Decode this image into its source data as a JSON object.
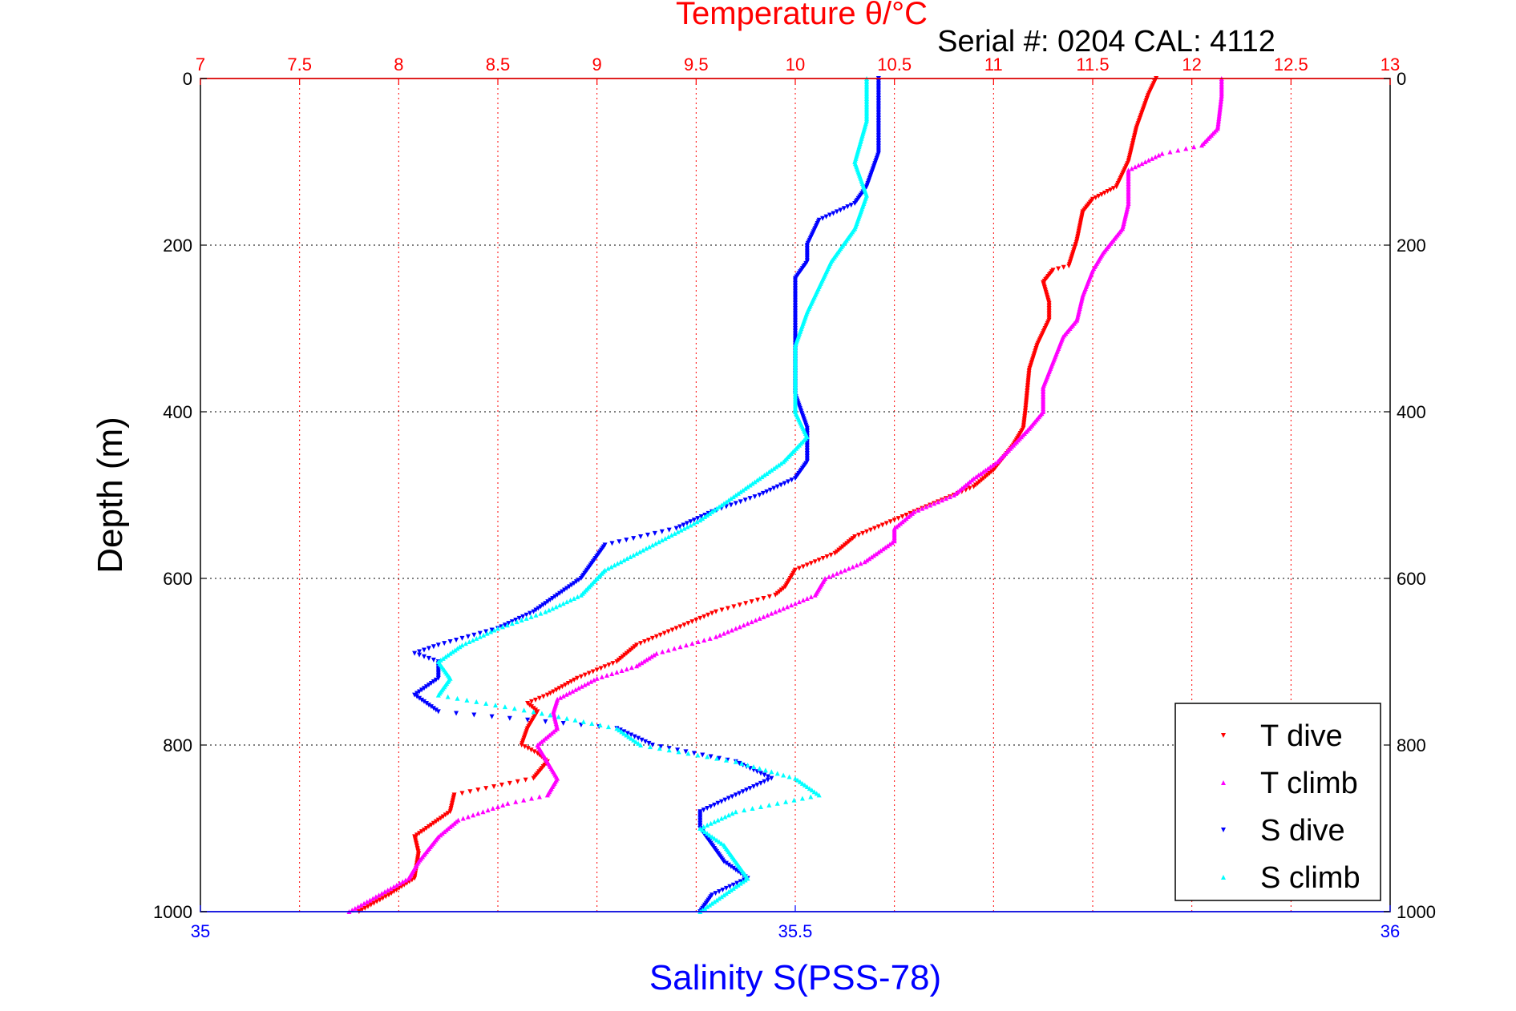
{
  "chart_data": {
    "type": "scatter",
    "title": "Temperature θ/°C",
    "annotation": "Serial #: 0204  CAL: 4112",
    "xlabel": "Salinity S(PSS-78)",
    "ylabel": "Depth (m)",
    "top_axis": {
      "range": [
        7,
        13
      ],
      "ticks": [
        "7",
        "7.5",
        "8",
        "8.5",
        "9",
        "9.5",
        "10",
        "10.5",
        "11",
        "11.5",
        "12",
        "12.5",
        "13"
      ],
      "color": "#ff0000"
    },
    "bottom_axis": {
      "range": [
        35,
        36
      ],
      "ticks": [
        "35",
        "35.5",
        "36"
      ],
      "color": "#0000ff"
    },
    "y_axis": {
      "range": [
        0,
        1000
      ],
      "reversed": true,
      "ticks": [
        "0",
        "200",
        "400",
        "600",
        "800",
        "1000"
      ]
    },
    "grid": true,
    "legend_position": "bottom-right",
    "series": [
      {
        "name": "T dive",
        "axis": "temperature",
        "color": "#ff0000",
        "marker": "triangle-down",
        "points": [
          [
            11.82,
            0
          ],
          [
            11.78,
            20
          ],
          [
            11.72,
            60
          ],
          [
            11.68,
            100
          ],
          [
            11.62,
            130
          ],
          [
            11.5,
            145
          ],
          [
            11.45,
            160
          ],
          [
            11.42,
            195
          ],
          [
            11.38,
            225
          ],
          [
            11.3,
            230
          ],
          [
            11.25,
            245
          ],
          [
            11.28,
            270
          ],
          [
            11.28,
            290
          ],
          [
            11.22,
            320
          ],
          [
            11.18,
            350
          ],
          [
            11.16,
            400
          ],
          [
            11.15,
            420
          ],
          [
            11.1,
            440
          ],
          [
            11.0,
            470
          ],
          [
            10.9,
            490
          ],
          [
            10.7,
            510
          ],
          [
            10.5,
            530
          ],
          [
            10.3,
            550
          ],
          [
            10.2,
            570
          ],
          [
            10.0,
            590
          ],
          [
            9.95,
            610
          ],
          [
            9.9,
            620
          ],
          [
            9.6,
            640
          ],
          [
            9.4,
            660
          ],
          [
            9.2,
            680
          ],
          [
            9.1,
            700
          ],
          [
            8.9,
            720
          ],
          [
            8.75,
            740
          ],
          [
            8.65,
            750
          ],
          [
            8.7,
            760
          ],
          [
            8.65,
            780
          ],
          [
            8.62,
            800
          ],
          [
            8.7,
            810
          ],
          [
            8.75,
            820
          ],
          [
            8.68,
            840
          ],
          [
            8.28,
            860
          ],
          [
            8.26,
            880
          ],
          [
            8.08,
            910
          ],
          [
            8.1,
            930
          ],
          [
            8.08,
            960
          ],
          [
            7.95,
            980
          ],
          [
            7.8,
            1000
          ]
        ]
      },
      {
        "name": "T climb",
        "axis": "temperature",
        "color": "#ff00ff",
        "marker": "triangle-up",
        "points": [
          [
            12.15,
            0
          ],
          [
            12.15,
            20
          ],
          [
            12.13,
            60
          ],
          [
            12.05,
            80
          ],
          [
            11.85,
            90
          ],
          [
            11.68,
            110
          ],
          [
            11.68,
            150
          ],
          [
            11.65,
            180
          ],
          [
            11.55,
            210
          ],
          [
            11.5,
            230
          ],
          [
            11.45,
            260
          ],
          [
            11.42,
            290
          ],
          [
            11.35,
            310
          ],
          [
            11.3,
            340
          ],
          [
            11.25,
            370
          ],
          [
            11.25,
            400
          ],
          [
            11.18,
            420
          ],
          [
            11.1,
            440
          ],
          [
            11.02,
            460
          ],
          [
            10.9,
            480
          ],
          [
            10.8,
            500
          ],
          [
            10.6,
            520
          ],
          [
            10.5,
            540
          ],
          [
            10.5,
            555
          ],
          [
            10.35,
            580
          ],
          [
            10.15,
            600
          ],
          [
            10.1,
            620
          ],
          [
            9.9,
            640
          ],
          [
            9.8,
            650
          ],
          [
            9.6,
            670
          ],
          [
            9.3,
            690
          ],
          [
            9.2,
            705
          ],
          [
            9.0,
            720
          ],
          [
            8.8,
            745
          ],
          [
            8.78,
            760
          ],
          [
            8.8,
            780
          ],
          [
            8.7,
            800
          ],
          [
            8.75,
            820
          ],
          [
            8.8,
            840
          ],
          [
            8.75,
            860
          ],
          [
            8.55,
            870
          ],
          [
            8.3,
            890
          ],
          [
            8.2,
            910
          ],
          [
            8.1,
            940
          ],
          [
            8.05,
            960
          ],
          [
            7.9,
            980
          ],
          [
            7.75,
            1000
          ]
        ]
      },
      {
        "name": "S dive",
        "axis": "salinity",
        "color": "#0000ff",
        "marker": "triangle-down",
        "points": [
          [
            35.57,
            0
          ],
          [
            35.57,
            40
          ],
          [
            35.57,
            90
          ],
          [
            35.56,
            130
          ],
          [
            35.55,
            150
          ],
          [
            35.52,
            170
          ],
          [
            35.51,
            200
          ],
          [
            35.51,
            220
          ],
          [
            35.5,
            240
          ],
          [
            35.5,
            260
          ],
          [
            35.5,
            280
          ],
          [
            35.5,
            310
          ],
          [
            35.5,
            350
          ],
          [
            35.5,
            380
          ],
          [
            35.51,
            420
          ],
          [
            35.51,
            460
          ],
          [
            35.5,
            480
          ],
          [
            35.47,
            500
          ],
          [
            35.43,
            520
          ],
          [
            35.4,
            540
          ],
          [
            35.34,
            560
          ],
          [
            35.33,
            580
          ],
          [
            35.32,
            600
          ],
          [
            35.3,
            620
          ],
          [
            35.28,
            640
          ],
          [
            35.25,
            660
          ],
          [
            35.2,
            680
          ],
          [
            35.18,
            690
          ],
          [
            35.2,
            700
          ],
          [
            35.2,
            720
          ],
          [
            35.18,
            740
          ],
          [
            35.2,
            760
          ],
          [
            35.35,
            780
          ],
          [
            35.38,
            800
          ],
          [
            35.45,
            820
          ],
          [
            35.48,
            840
          ],
          [
            35.45,
            860
          ],
          [
            35.42,
            880
          ],
          [
            35.42,
            900
          ],
          [
            35.43,
            920
          ],
          [
            35.44,
            940
          ],
          [
            35.46,
            960
          ],
          [
            35.43,
            980
          ],
          [
            35.42,
            1000
          ]
        ]
      },
      {
        "name": "S climb",
        "axis": "salinity",
        "color": "#00ffff",
        "marker": "triangle-up",
        "points": [
          [
            35.56,
            0
          ],
          [
            35.56,
            50
          ],
          [
            35.55,
            100
          ],
          [
            35.56,
            140
          ],
          [
            35.55,
            180
          ],
          [
            35.53,
            220
          ],
          [
            35.52,
            250
          ],
          [
            35.51,
            280
          ],
          [
            35.5,
            320
          ],
          [
            35.5,
            360
          ],
          [
            35.5,
            400
          ],
          [
            35.51,
            430
          ],
          [
            35.49,
            460
          ],
          [
            35.46,
            490
          ],
          [
            35.42,
            530
          ],
          [
            35.38,
            560
          ],
          [
            35.34,
            590
          ],
          [
            35.32,
            620
          ],
          [
            35.29,
            640
          ],
          [
            35.25,
            660
          ],
          [
            35.22,
            680
          ],
          [
            35.2,
            700
          ],
          [
            35.21,
            720
          ],
          [
            35.2,
            740
          ],
          [
            35.28,
            760
          ],
          [
            35.35,
            780
          ],
          [
            35.37,
            800
          ],
          [
            35.45,
            820
          ],
          [
            35.5,
            840
          ],
          [
            35.52,
            860
          ],
          [
            35.45,
            880
          ],
          [
            35.42,
            900
          ],
          [
            35.44,
            920
          ],
          [
            35.45,
            940
          ],
          [
            35.46,
            960
          ],
          [
            35.44,
            980
          ],
          [
            35.42,
            1000
          ]
        ]
      }
    ]
  }
}
